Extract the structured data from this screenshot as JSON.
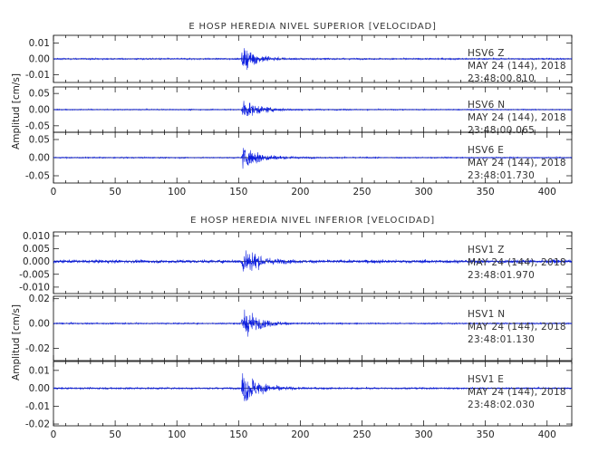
{
  "chart_data": [
    {
      "type": "line",
      "title": "E HOSP HEREDIA NIVEL SUPERIOR [VELOCIDAD]",
      "ylabel": "Amplitud [cm/s]",
      "xlabel": "",
      "xlim": [
        0,
        420
      ],
      "x_ticks": [
        "0",
        "50",
        "100",
        "150",
        "200",
        "250",
        "300",
        "350",
        "400"
      ],
      "panels": [
        {
          "station": "HSV6",
          "component": "Z",
          "date": "MAY 24 (144), 2018",
          "time": "23:48:00.810",
          "ylim": [
            -0.015,
            0.015
          ],
          "y_ticks": [
            "0.01",
            "0.00",
            "-0.01"
          ],
          "y_tick_values": [
            0.01,
            0.0,
            -0.01
          ],
          "noise_amplitude": 0.0007,
          "event_onset_s": 152,
          "peak_amplitude": 0.012,
          "decay_s": 12
        },
        {
          "station": "HSV6",
          "component": "N",
          "date": "MAY 24 (144), 2018",
          "time": "23:48:00.065",
          "ylim": [
            -0.07,
            0.07
          ],
          "y_ticks": [
            "0.05",
            "0.00",
            "-0.05"
          ],
          "y_tick_values": [
            0.05,
            0.0,
            -0.05
          ],
          "noise_amplitude": 0.0025,
          "event_onset_s": 152,
          "peak_amplitude": 0.045,
          "decay_s": 14
        },
        {
          "station": "HSV6",
          "component": "E",
          "date": "MAY 24 (144), 2018",
          "time": "23:48:01.730",
          "ylim": [
            -0.07,
            0.07
          ],
          "y_ticks": [
            "0.05",
            "0.00",
            "-0.05"
          ],
          "y_tick_values": [
            0.05,
            0.0,
            -0.05
          ],
          "noise_amplitude": 0.0025,
          "event_onset_s": 152,
          "peak_amplitude": 0.05,
          "decay_s": 14
        }
      ]
    },
    {
      "type": "line",
      "title": "E HOSP HEREDIA NIVEL INFERIOR [VELOCIDAD]",
      "ylabel": "Amplitud [cm/s]",
      "xlabel": "",
      "xlim": [
        0,
        420
      ],
      "x_ticks": [
        "0",
        "50",
        "100",
        "150",
        "200",
        "250",
        "300",
        "350",
        "400"
      ],
      "panels": [
        {
          "station": "HSV1",
          "component": "Z",
          "date": "MAY 24 (144), 2018",
          "time": "23:48:01.970",
          "ylim": [
            -0.0125,
            0.0115
          ],
          "y_ticks": [
            "0.010",
            "0.005",
            "0.000",
            "-0.005",
            "-0.010"
          ],
          "y_tick_values": [
            0.01,
            0.005,
            0.0,
            -0.005,
            -0.01
          ],
          "noise_amplitude": 0.0009,
          "event_onset_s": 152,
          "peak_amplitude": 0.0105,
          "decay_s": 11
        },
        {
          "station": "HSV1",
          "component": "N",
          "date": "MAY 24 (144), 2018",
          "time": "23:48:01.130",
          "ylim": [
            -0.03,
            0.022
          ],
          "y_ticks": [
            "0.02",
            "0.00",
            "-0.02"
          ],
          "y_tick_values": [
            0.02,
            0.0,
            -0.02
          ],
          "noise_amplitude": 0.0008,
          "event_onset_s": 152,
          "peak_amplitude": 0.02,
          "decay_s": 12
        },
        {
          "station": "HSV1",
          "component": "E",
          "date": "MAY 24 (144), 2018",
          "time": "23:48:02.030",
          "ylim": [
            -0.021,
            0.015
          ],
          "y_ticks": [
            "0.01",
            "0.00",
            "-0.01",
            "-0.02"
          ],
          "y_tick_values": [
            0.01,
            0.0,
            -0.01,
            -0.02
          ],
          "noise_amplitude": 0.0007,
          "event_onset_s": 152,
          "peak_amplitude": 0.017,
          "decay_s": 12
        }
      ]
    }
  ],
  "colors": {
    "trace": "#0b1de0",
    "axes": "#000000",
    "text": "#333333"
  }
}
